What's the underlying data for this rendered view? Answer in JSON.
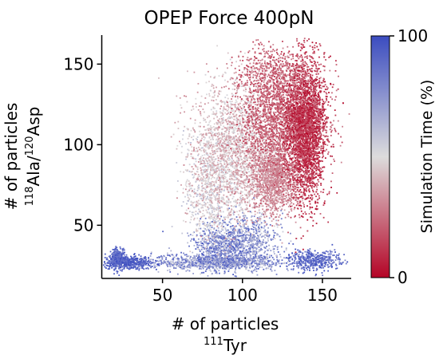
{
  "chart_data": {
    "type": "scatter",
    "title": "OPEP Force 400pN",
    "xlabel": "# of particles",
    "xlabel_sub": {
      "sup": "111",
      "text": "Tyr"
    },
    "ylabel": "# of particles",
    "ylabel_sub": [
      {
        "sup": "118",
        "text": "Ala/"
      },
      {
        "sup": "120",
        "text": "Asp"
      }
    ],
    "xlim": [
      12,
      168
    ],
    "ylim": [
      17,
      168
    ],
    "xticks": [
      50,
      100,
      150
    ],
    "yticks": [
      50,
      100,
      150
    ],
    "grid": false,
    "colorbar": {
      "label": "Simulation Time (%)",
      "range": [
        0,
        100
      ],
      "ticks": [
        0,
        100
      ],
      "colormap": "coolwarm_r",
      "low_color": "#b40426",
      "mid_color": "#dddcdc",
      "high_color": "#3b4cc0"
    },
    "clusters": [
      {
        "x": 28,
        "y": 27,
        "sx": 9,
        "sy": 2,
        "n": 500,
        "time": [
          88,
          100
        ]
      },
      {
        "x": 22,
        "y": 30,
        "sx": 2,
        "sy": 3,
        "n": 250,
        "time": [
          82,
          100
        ]
      },
      {
        "x": 85,
        "y": 27,
        "sx": 20,
        "sy": 2.5,
        "n": 900,
        "time": [
          55,
          95
        ]
      },
      {
        "x": 145,
        "y": 28,
        "sx": 8,
        "sy": 3,
        "n": 400,
        "time": [
          80,
          100
        ]
      },
      {
        "x": 88,
        "y": 37,
        "sx": 10,
        "sy": 7,
        "n": 600,
        "time": [
          65,
          98
        ]
      },
      {
        "x": 103,
        "y": 40,
        "sx": 11,
        "sy": 8,
        "n": 600,
        "time": [
          55,
          95
        ]
      },
      {
        "x": 80,
        "y": 70,
        "sx": 8,
        "sy": 18,
        "n": 600,
        "time": [
          42,
          62
        ]
      },
      {
        "x": 95,
        "y": 95,
        "sx": 14,
        "sy": 22,
        "n": 2200,
        "time": [
          30,
          55
        ]
      },
      {
        "x": 120,
        "y": 80,
        "sx": 8,
        "sy": 11,
        "n": 1300,
        "time": [
          22,
          38
        ]
      },
      {
        "x": 126,
        "y": 118,
        "sx": 13,
        "sy": 16,
        "n": 2200,
        "time": [
          10,
          30
        ]
      },
      {
        "x": 140,
        "y": 108,
        "sx": 6,
        "sy": 22,
        "n": 2600,
        "time": [
          0,
          22
        ]
      },
      {
        "x": 118,
        "y": 145,
        "sx": 11,
        "sy": 8,
        "n": 400,
        "time": [
          12,
          32
        ]
      }
    ]
  }
}
